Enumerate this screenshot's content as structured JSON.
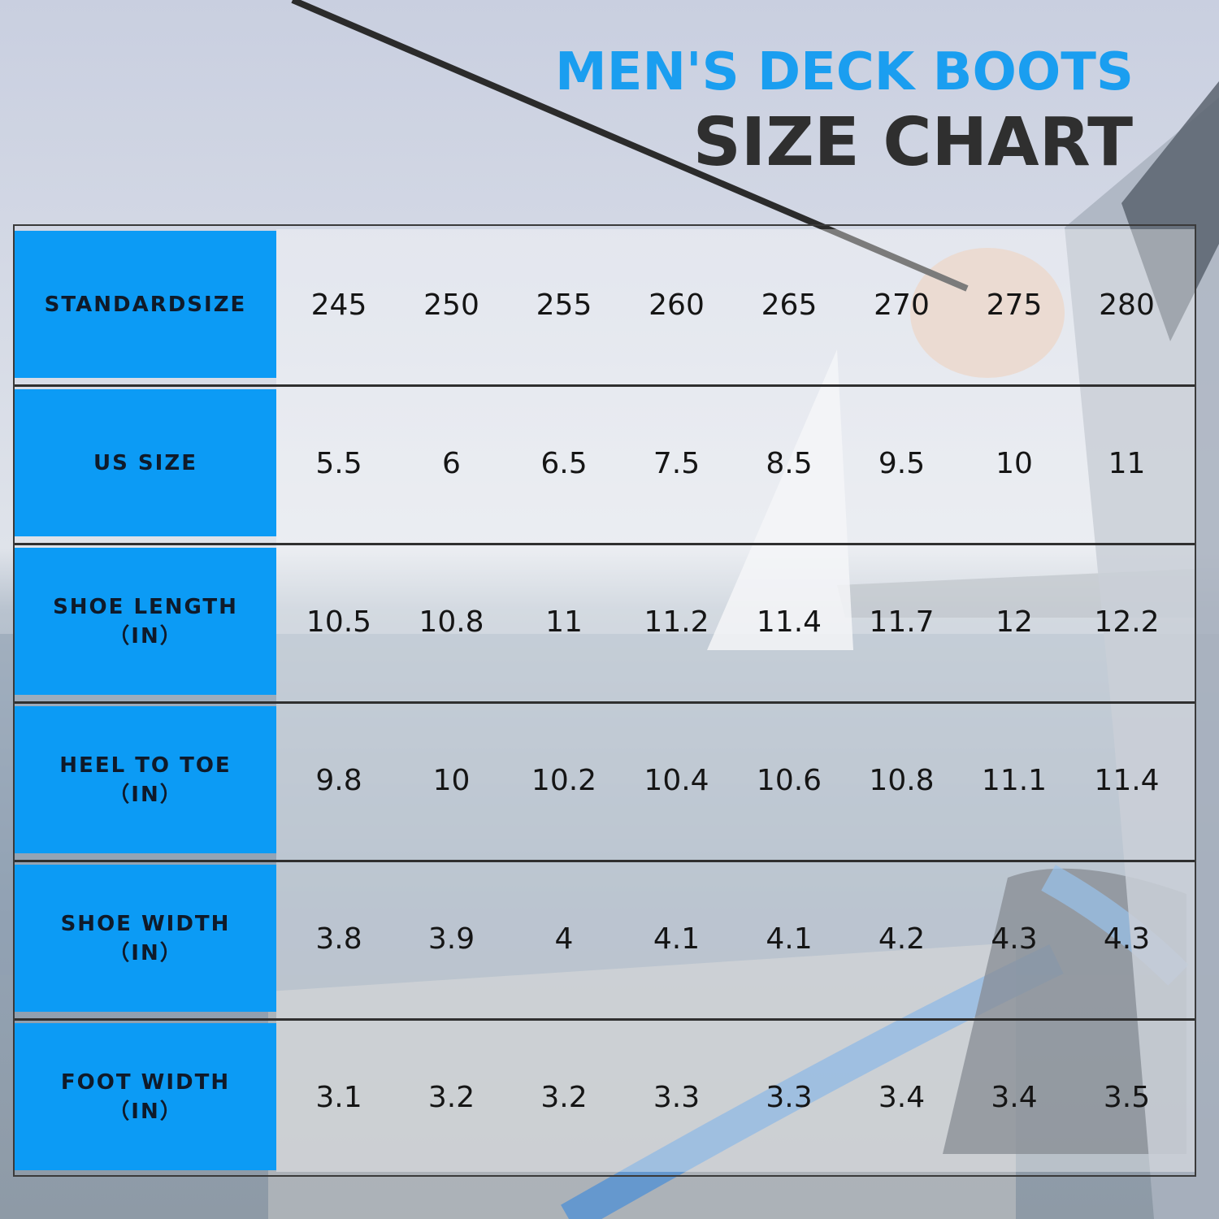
{
  "title": {
    "line1": "MEN'S DECK BOOTS",
    "line2": "SIZE CHART"
  },
  "colors": {
    "accent": "#0c9bf5",
    "title_blue": "#1a9ef0",
    "title_dark": "#2f2f2f"
  },
  "chart_data": {
    "type": "table",
    "title": "MEN'S DECK BOOTS SIZE CHART",
    "rows": [
      {
        "label": "STANDARDSIZE",
        "unit": "",
        "values": [
          "245",
          "250",
          "255",
          "260",
          "265",
          "270",
          "275",
          "280"
        ]
      },
      {
        "label": "US SIZE",
        "unit": "",
        "values": [
          "5.5",
          "6",
          "6.5",
          "7.5",
          "8.5",
          "9.5",
          "10",
          "11"
        ]
      },
      {
        "label": "SHOE LENGTH",
        "unit": "（IN）",
        "values": [
          "10.5",
          "10.8",
          "11",
          "11.2",
          "11.4",
          "11.7",
          "12",
          "12.2"
        ]
      },
      {
        "label": "HEEL TO TOE",
        "unit": "（IN）",
        "values": [
          "9.8",
          "10",
          "10.2",
          "10.4",
          "10.6",
          "10.8",
          "11.1",
          "11.4"
        ]
      },
      {
        "label": "SHOE WIDTH",
        "unit": "（IN）",
        "values": [
          "3.8",
          "3.9",
          "4",
          "4.1",
          "4.1",
          "4.2",
          "4.3",
          "4.3"
        ]
      },
      {
        "label": "FOOT WIDTH",
        "unit": "（IN）",
        "values": [
          "3.1",
          "3.2",
          "3.2",
          "3.3",
          "3.3",
          "3.4",
          "3.4",
          "3.5"
        ]
      }
    ]
  }
}
